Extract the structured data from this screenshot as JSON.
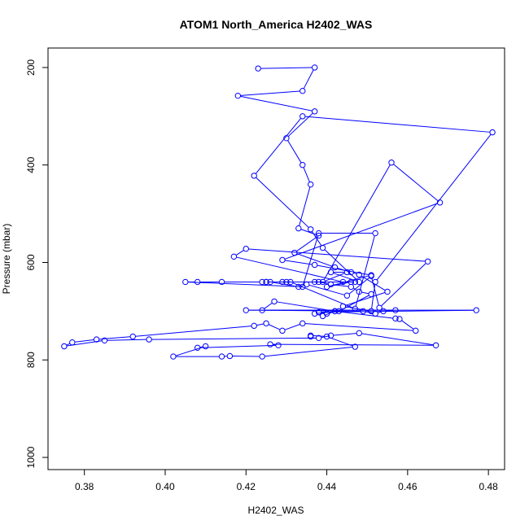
{
  "chart_data": {
    "type": "line",
    "title": "ATOM1 North_America H2402_WAS",
    "xlabel": "H2402_WAS",
    "ylabel": "Pressure (mbar)",
    "xlim": [
      0.371,
      0.484
    ],
    "ylim": [
      1025,
      160
    ],
    "x_ticks": [
      "0.38",
      "0.40",
      "0.42",
      "0.44",
      "0.46",
      "0.48"
    ],
    "y_ticks": [
      "200",
      "400",
      "600",
      "800",
      "1000"
    ],
    "grid": false,
    "legend": "none",
    "color": "#0000ff",
    "series": [
      {
        "x": [
          0.423,
          0.437,
          0.434,
          0.418,
          0.437,
          0.43,
          0.434,
          0.436,
          0.433,
          0.438,
          0.432,
          0.442,
          0.446,
          0.448,
          0.455,
          0.444,
          0.451,
          0.452,
          0.481,
          0.434,
          0.422,
          0.436,
          0.439,
          0.448,
          0.441,
          0.445,
          0.439,
          0.456,
          0.468,
          0.429,
          0.437,
          0.451,
          0.44,
          0.446,
          0.425,
          0.426,
          0.433,
          0.435,
          0.445,
          0.451,
          0.453,
          0.465,
          0.42,
          0.417,
          0.444,
          0.447,
          0.429,
          0.431,
          0.447,
          0.452,
          0.438,
          0.434,
          0.405,
          0.408,
          0.414,
          0.424,
          0.425,
          0.43,
          0.437,
          0.438,
          0.441,
          0.446,
          0.448,
          0.451,
          0.443,
          0.437,
          0.439,
          0.442,
          0.427,
          0.424,
          0.449,
          0.452,
          0.454,
          0.457,
          0.42,
          0.477,
          0.438,
          0.44,
          0.442,
          0.457,
          0.458,
          0.462,
          0.434,
          0.429,
          0.425,
          0.422,
          0.392,
          0.383,
          0.377,
          0.375,
          0.385,
          0.396,
          0.438,
          0.441,
          0.448,
          0.467,
          0.426,
          0.428,
          0.408,
          0.41,
          0.402,
          0.414,
          0.416,
          0.424,
          0.447,
          0.44,
          0.436,
          0.436
        ],
        "y": [
          202,
          200,
          248,
          258,
          290,
          345,
          400,
          440,
          530,
          545,
          580,
          610,
          620,
          625,
          660,
          690,
          700,
          640,
          333,
          300,
          422,
          532,
          570,
          640,
          620,
          620,
          640,
          395,
          477,
          595,
          605,
          626,
          650,
          640,
          640,
          640,
          650,
          645,
          668,
          628,
          693,
          598,
          572,
          588,
          640,
          640,
          640,
          640,
          695,
          540,
          540,
          650,
          640,
          640,
          640,
          640,
          640,
          640,
          640,
          640,
          645,
          650,
          660,
          665,
          700,
          705,
          710,
          700,
          680,
          698,
          700,
          705,
          700,
          698,
          698,
          698,
          702,
          705,
          700,
          715,
          716,
          740,
          725,
          740,
          725,
          730,
          752,
          758,
          764,
          772,
          760,
          758,
          755,
          750,
          745,
          770,
          768,
          770,
          775,
          772,
          793,
          793,
          792,
          793,
          773,
          752,
          750,
          752
        ]
      }
    ]
  }
}
